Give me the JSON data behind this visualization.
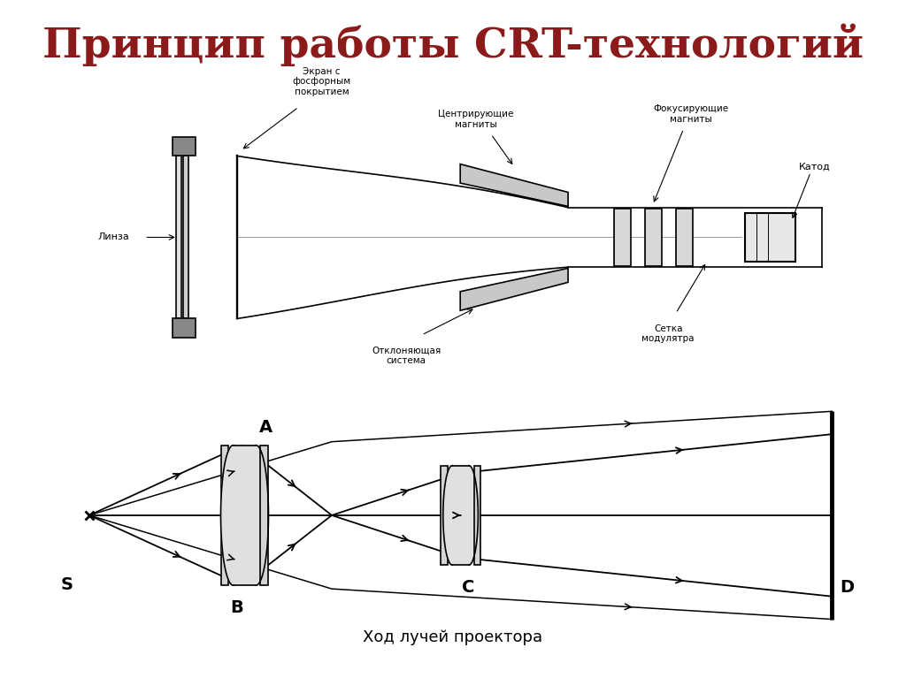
{
  "title": "Принцип работы CRT-технологий",
  "title_color": "#8B1A1A",
  "title_fontsize": 34,
  "bg_color": "#FFFFFF",
  "caption": "Ход лучей проектора",
  "caption_fontsize": 13,
  "label_s": "S",
  "label_a": "A",
  "label_b": "B",
  "label_c": "C",
  "label_d": "D",
  "label_linza": "Линза",
  "label_ekran": "Экран с\nфосфорным\nпокрытием",
  "label_centrmagnets": "Центрирующие\nмагниты",
  "label_focusmagnets": "Фокусирующие\nмагниты",
  "label_katod": "Катод",
  "label_setka": "Сетка\nмодулятра",
  "label_otklon": "Отклоняющая\nсистема",
  "line_color": "#000000",
  "line_width": 1.2,
  "arrow_color": "#000000"
}
